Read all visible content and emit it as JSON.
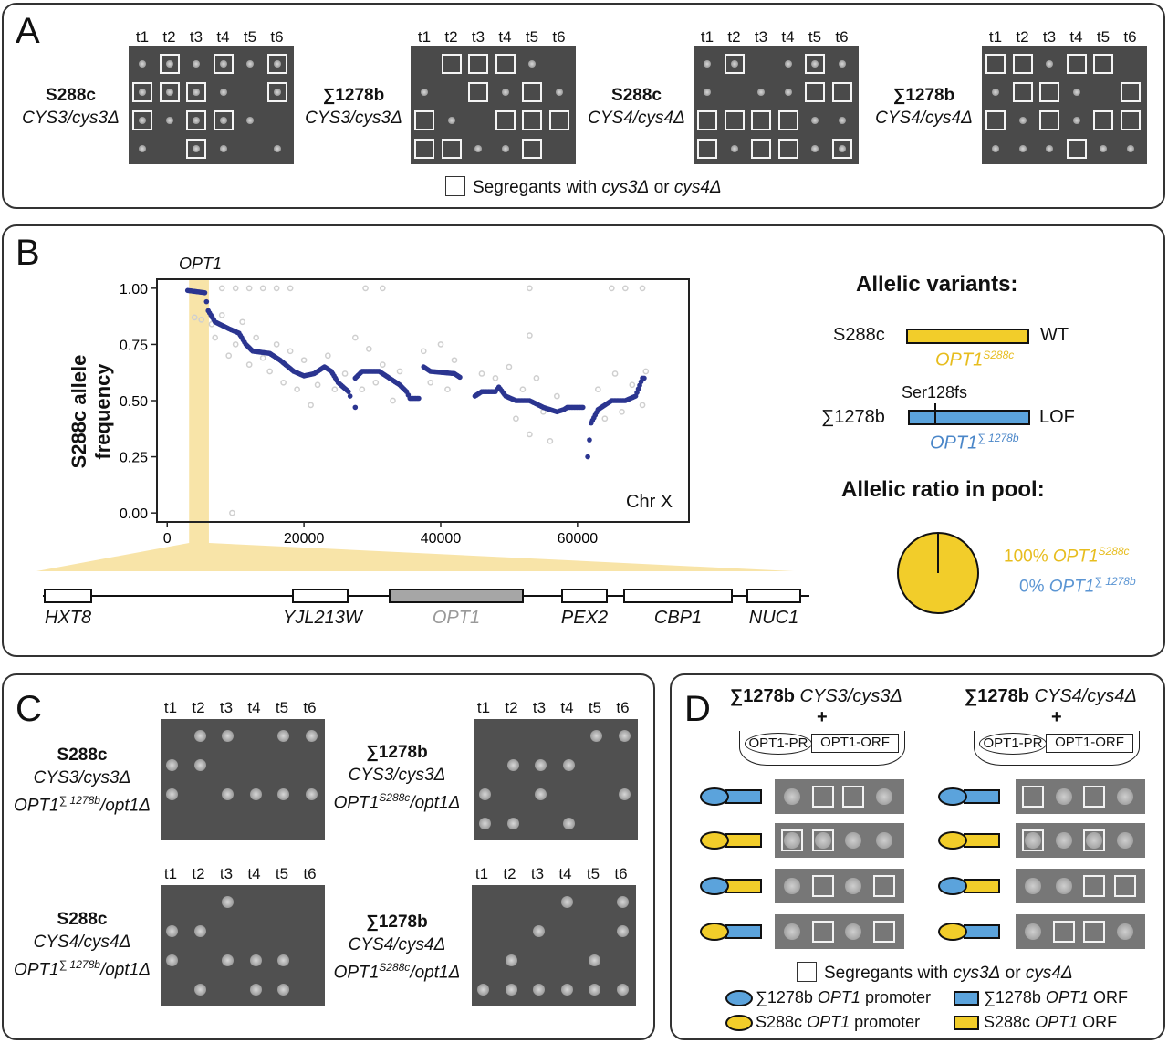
{
  "colors": {
    "yellow": "#f2cd2a",
    "blue": "#5ba3dc",
    "navy": "#2b3590",
    "gray_points": "#cfcfcf",
    "highlight": "#f8e4a8"
  },
  "panel_a": {
    "label": "A",
    "columns": [
      "t1",
      "t2",
      "t3",
      "t4",
      "t5",
      "t6"
    ],
    "plates": [
      {
        "strain": "S288c",
        "genotype": "CYS3/cys3Δ",
        "grid": [
          "obobob",
          "bbbo.b",
          "bobbo.",
          "o.bo.o"
        ]
      },
      {
        "strain": "∑1278b",
        "genotype": "CYS3/cys3Δ",
        "grid": [
          ".xxxo.",
          "o.xoxo",
          "xo.xxx",
          "xxoox."
        ]
      },
      {
        "strain": "S288c",
        "genotype": "CYS4/cys4Δ",
        "grid": [
          "ob.obo",
          "o.ooxx",
          "xxxxoo",
          "xoxxob"
        ]
      },
      {
        "strain": "∑1278b",
        "genotype": "CYS4/cys4Δ",
        "grid": [
          "xxoxx.",
          "oxxo.x",
          "xoxoxx",
          "oooxoo"
        ]
      }
    ],
    "legend": {
      "text1": "Segregants with ",
      "g1": "cys3Δ",
      "text2": " or ",
      "g2": "cys4Δ"
    }
  },
  "panel_b": {
    "label": "B",
    "highlight_gene": "OPT1",
    "chart_data": {
      "type": "scatter",
      "xlabel": "",
      "ylabel": "S288c allele frequency",
      "annotation": "Chr X",
      "xlim": [
        -1500,
        76300
      ],
      "ylim": [
        -0.04,
        1.04
      ],
      "xticks": [
        "0",
        "20000",
        "40000",
        "60000"
      ],
      "xtick_values": [
        0,
        20000,
        40000,
        60000
      ],
      "yticks": [
        "0.00",
        "0.25",
        "0.50",
        "0.75",
        "1.00"
      ],
      "ytick_values": [
        0,
        0.25,
        0.5,
        0.75,
        1
      ],
      "grid": false,
      "highlight_range": [
        3200,
        6100
      ],
      "smoothed_series_segments": [
        [
          [
            3000,
            0.99
          ],
          [
            5500,
            0.98
          ],
          [
            6000,
            0.9
          ],
          [
            7000,
            0.85
          ],
          [
            9000,
            0.82
          ],
          [
            10500,
            0.8
          ],
          [
            11500,
            0.75
          ],
          [
            12500,
            0.72
          ],
          [
            15000,
            0.71
          ],
          [
            16500,
            0.68
          ],
          [
            18500,
            0.63
          ],
          [
            20000,
            0.61
          ],
          [
            21500,
            0.62
          ],
          [
            23000,
            0.65
          ],
          [
            24000,
            0.63
          ],
          [
            25000,
            0.58
          ],
          [
            26500,
            0.54
          ],
          [
            27000,
            0.5
          ]
        ],
        [
          [
            27500,
            0.47
          ]
        ],
        [
          [
            27500,
            0.6
          ],
          [
            28500,
            0.63
          ],
          [
            31000,
            0.63
          ],
          [
            32500,
            0.6
          ],
          [
            34000,
            0.57
          ],
          [
            35000,
            0.54
          ],
          [
            35500,
            0.51
          ]
        ],
        [
          [
            35500,
            0.51
          ],
          [
            37000,
            0.51
          ]
        ],
        [
          [
            37500,
            0.65
          ],
          [
            38500,
            0.63
          ],
          [
            42000,
            0.62
          ],
          [
            43000,
            0.6
          ]
        ],
        [
          [
            45000,
            0.52
          ],
          [
            46000,
            0.54
          ],
          [
            48000,
            0.54
          ],
          [
            48500,
            0.56
          ],
          [
            49500,
            0.52
          ],
          [
            51000,
            0.5
          ],
          [
            53000,
            0.5
          ],
          [
            55000,
            0.47
          ],
          [
            57000,
            0.45
          ],
          [
            58000,
            0.46
          ],
          [
            58500,
            0.47
          ],
          [
            61000,
            0.47
          ]
        ],
        [
          [
            61500,
            0.25
          ],
          [
            62000,
            0.4
          ],
          [
            63000,
            0.46
          ],
          [
            65000,
            0.5
          ],
          [
            67000,
            0.5
          ],
          [
            68500,
            0.52
          ],
          [
            69500,
            0.6
          ],
          [
            70000,
            0.6
          ]
        ]
      ],
      "raw_points": [
        [
          4000,
          0.87
        ],
        [
          5000,
          0.86
        ],
        [
          6500,
          0.84
        ],
        [
          7000,
          0.78
        ],
        [
          8000,
          0.88
        ],
        [
          9000,
          0.7
        ],
        [
          10000,
          0.75
        ],
        [
          11000,
          0.85
        ],
        [
          12000,
          0.66
        ],
        [
          13000,
          0.78
        ],
        [
          14000,
          0.69
        ],
        [
          15000,
          0.63
        ],
        [
          16000,
          0.75
        ],
        [
          17000,
          0.58
        ],
        [
          18000,
          0.72
        ],
        [
          19000,
          0.55
        ],
        [
          20000,
          0.68
        ],
        [
          21000,
          0.48
        ],
        [
          22000,
          0.57
        ],
        [
          23500,
          0.7
        ],
        [
          24500,
          0.55
        ],
        [
          26000,
          0.62
        ],
        [
          27500,
          0.78
        ],
        [
          28500,
          0.55
        ],
        [
          29500,
          0.73
        ],
        [
          30500,
          0.58
        ],
        [
          31500,
          0.66
        ],
        [
          33000,
          0.5
        ],
        [
          34000,
          0.63
        ],
        [
          37500,
          0.72
        ],
        [
          38500,
          0.58
        ],
        [
          40000,
          0.75
        ],
        [
          41000,
          0.55
        ],
        [
          42000,
          0.68
        ],
        [
          46000,
          0.62
        ],
        [
          48000,
          0.6
        ],
        [
          50000,
          0.65
        ],
        [
          51000,
          0.42
        ],
        [
          52000,
          0.55
        ],
        [
          53000,
          0.35
        ],
        [
          54000,
          0.6
        ],
        [
          55000,
          0.45
        ],
        [
          56000,
          0.32
        ],
        [
          57000,
          0.52
        ],
        [
          63000,
          0.55
        ],
        [
          64000,
          0.42
        ],
        [
          65500,
          0.62
        ],
        [
          66500,
          0.45
        ],
        [
          68000,
          0.57
        ],
        [
          69500,
          0.48
        ],
        [
          70000,
          0.63
        ],
        [
          9500,
          0.0
        ],
        [
          8000,
          1.0
        ],
        [
          10000,
          1.0
        ],
        [
          12000,
          1.0
        ],
        [
          14000,
          1.0
        ],
        [
          16000,
          1.0
        ],
        [
          18000,
          1.0
        ],
        [
          29000,
          1.0
        ],
        [
          31500,
          1.0
        ],
        [
          53000,
          1.0
        ],
        [
          65000,
          1.0
        ],
        [
          67000,
          1.0
        ],
        [
          69500,
          1.0
        ],
        [
          53000,
          0.79
        ]
      ]
    },
    "genes": [
      {
        "name": "HXT8",
        "highlight": false
      },
      {
        "name": "YJL213W",
        "highlight": false
      },
      {
        "name": "OPT1",
        "highlight": true
      },
      {
        "name": "PEX2",
        "highlight": false
      },
      {
        "name": "CBP1",
        "highlight": false
      },
      {
        "name": "NUC1",
        "highlight": false
      }
    ],
    "variants_title": "Allelic variants:",
    "variant1": {
      "strain": "S288c",
      "effect": "WT",
      "gene": "OPT1",
      "sup": "S288c"
    },
    "variant2": {
      "strain": "∑1278b",
      "effect": "LOF",
      "mutation": "Ser128fs",
      "gene": "OPT1",
      "sup": "∑ 1278b"
    },
    "ratio_title": "Allelic ratio in pool:",
    "pie": {
      "type": "pie",
      "values": [
        100,
        0
      ],
      "labels": [
        {
          "pct": "100%",
          "gene": "OPT1",
          "sup": "S288c"
        },
        {
          "pct": "0%",
          "gene": "OPT1",
          "sup": "∑ 1278b"
        }
      ]
    }
  },
  "panel_c": {
    "label": "C",
    "columns": [
      "t1",
      "t2",
      "t3",
      "t4",
      "t5",
      "t6"
    ],
    "plates": [
      {
        "strain": "S288c",
        "genotype": "CYS3/cys3Δ",
        "gene": "OPT1",
        "sup": "∑ 1278b",
        "rest": "/opt1Δ",
        "grid": [
          ".oo.oo",
          "oo....",
          "o.oooo",
          "......"
        ]
      },
      {
        "strain": "∑1278b",
        "genotype": "CYS3/cys3Δ",
        "gene": "OPT1",
        "sup": "S288c",
        "rest": "/opt1Δ",
        "grid": [
          "....oo",
          ".ooo..",
          "o.o..o",
          "oo.o.."
        ]
      },
      {
        "strain": "S288c",
        "genotype": "CYS4/cys4Δ",
        "gene": "OPT1",
        "sup": "∑ 1278b",
        "rest": "/opt1Δ",
        "grid": [
          "..o...",
          "oo....",
          "o.ooo.",
          ".o.oo."
        ]
      },
      {
        "strain": "∑1278b",
        "genotype": "CYS4/cys4Δ",
        "gene": "OPT1",
        "sup": "S288c",
        "rest": "/opt1Δ",
        "grid": [
          "...o.o",
          "..o..o",
          ".o..o.",
          "oooooo"
        ]
      }
    ]
  },
  "panel_d": {
    "label": "D",
    "plus": "+",
    "promoter": "OPT1-PR",
    "orf": "OPT1-ORF",
    "columns": [
      {
        "strain": "∑1278b",
        "genotype": "CYS3/cys3Δ",
        "rows": [
          {
            "promoter": "blue",
            "orf": "blue",
            "grid": "oxxo"
          },
          {
            "promoter": "yellow",
            "orf": "yellow",
            "grid": "bboo"
          },
          {
            "promoter": "blue",
            "orf": "yellow",
            "grid": "oxox"
          },
          {
            "promoter": "yellow",
            "orf": "blue",
            "grid": "oxox"
          }
        ]
      },
      {
        "strain": "∑1278b",
        "genotype": "CYS4/cys4Δ",
        "rows": [
          {
            "promoter": "blue",
            "orf": "blue",
            "grid": "xoxo"
          },
          {
            "promoter": "yellow",
            "orf": "yellow",
            "grid": "bobo"
          },
          {
            "promoter": "blue",
            "orf": "yellow",
            "grid": "ooxx"
          },
          {
            "promoter": "yellow",
            "orf": "blue",
            "grid": "oxxo"
          }
        ]
      }
    ],
    "legend": {
      "text1": "Segregants with ",
      "g1": "cys3Δ",
      "text2": " or ",
      "g2": "cys4Δ",
      "items": [
        {
          "strain": "∑1278b",
          "gene": "OPT1",
          "part": "promoter"
        },
        {
          "strain": "∑1278b",
          "gene": "OPT1",
          "part": "ORF"
        },
        {
          "strain": "S288c",
          "gene": "OPT1",
          "part": "promoter"
        },
        {
          "strain": "S288c",
          "gene": "OPT1",
          "part": "ORF"
        }
      ]
    }
  }
}
